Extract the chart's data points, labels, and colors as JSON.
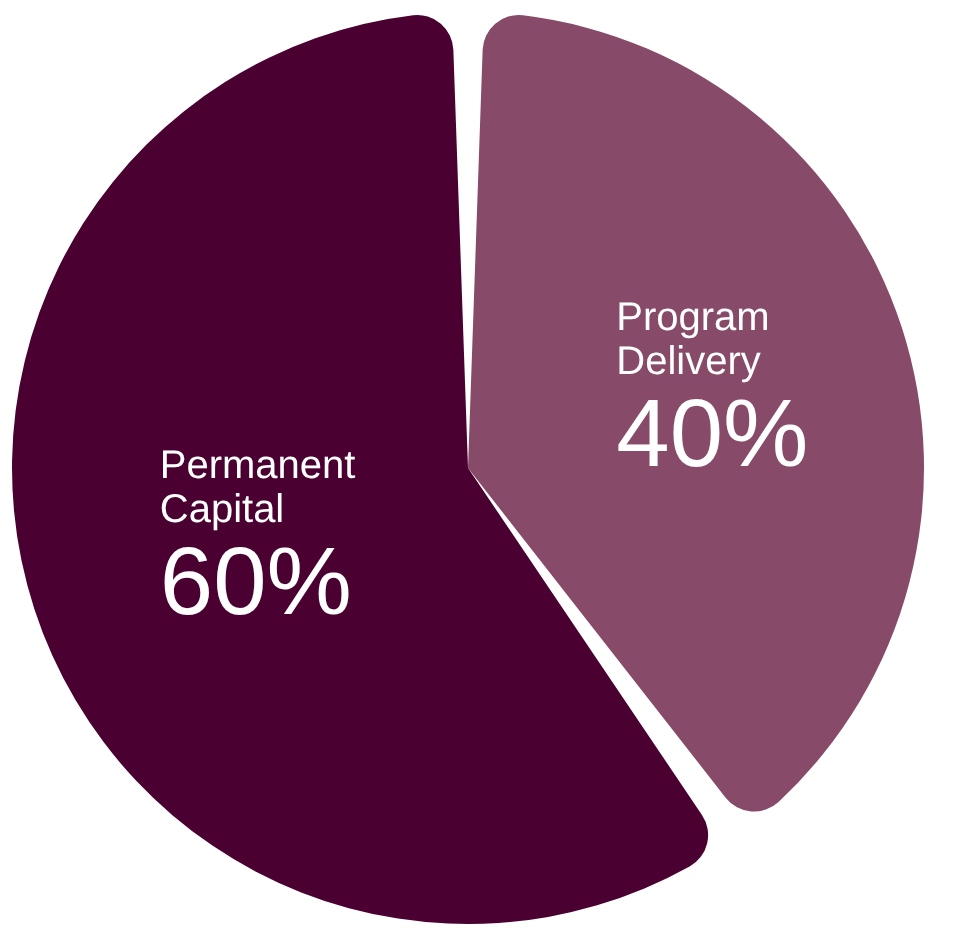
{
  "chart_data": {
    "type": "pie",
    "categories": [
      "Program Delivery",
      "Permanent Capital"
    ],
    "values": [
      40,
      60
    ],
    "colors": [
      "#874a68",
      "#4a0030"
    ],
    "value_labels": [
      "40%",
      "60%"
    ],
    "legend": false
  }
}
